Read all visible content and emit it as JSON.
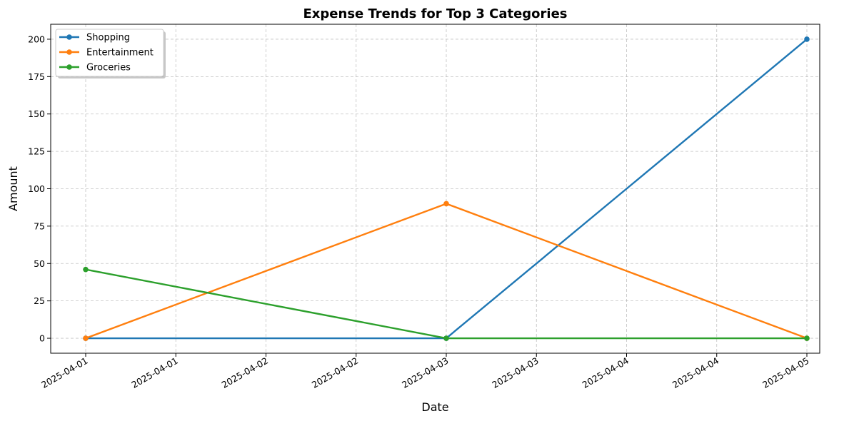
{
  "chart_data": {
    "type": "line",
    "title": "Expense Trends for Top 3 Categories",
    "xlabel": "Date",
    "ylabel": "Amount",
    "x": [
      "2025-04-01",
      "2025-04-03",
      "2025-04-05"
    ],
    "x_tick_labels": [
      "2025-04-01",
      "2025-04-01",
      "2025-04-02",
      "2025-04-02",
      "2025-04-03",
      "2025-04-03",
      "2025-04-04",
      "2025-04-04",
      "2025-04-05"
    ],
    "y_ticks": [
      0,
      25,
      50,
      75,
      100,
      125,
      150,
      175,
      200
    ],
    "ylim": [
      -10,
      210
    ],
    "grid": true,
    "legend_position": "top-left",
    "series": [
      {
        "name": "Shopping",
        "color": "#1f77b4",
        "values": [
          0,
          0,
          200
        ]
      },
      {
        "name": "Entertainment",
        "color": "#ff7f0e",
        "values": [
          0,
          90,
          0
        ]
      },
      {
        "name": "Groceries",
        "color": "#2ca02c",
        "values": [
          46,
          0,
          0
        ]
      }
    ]
  }
}
